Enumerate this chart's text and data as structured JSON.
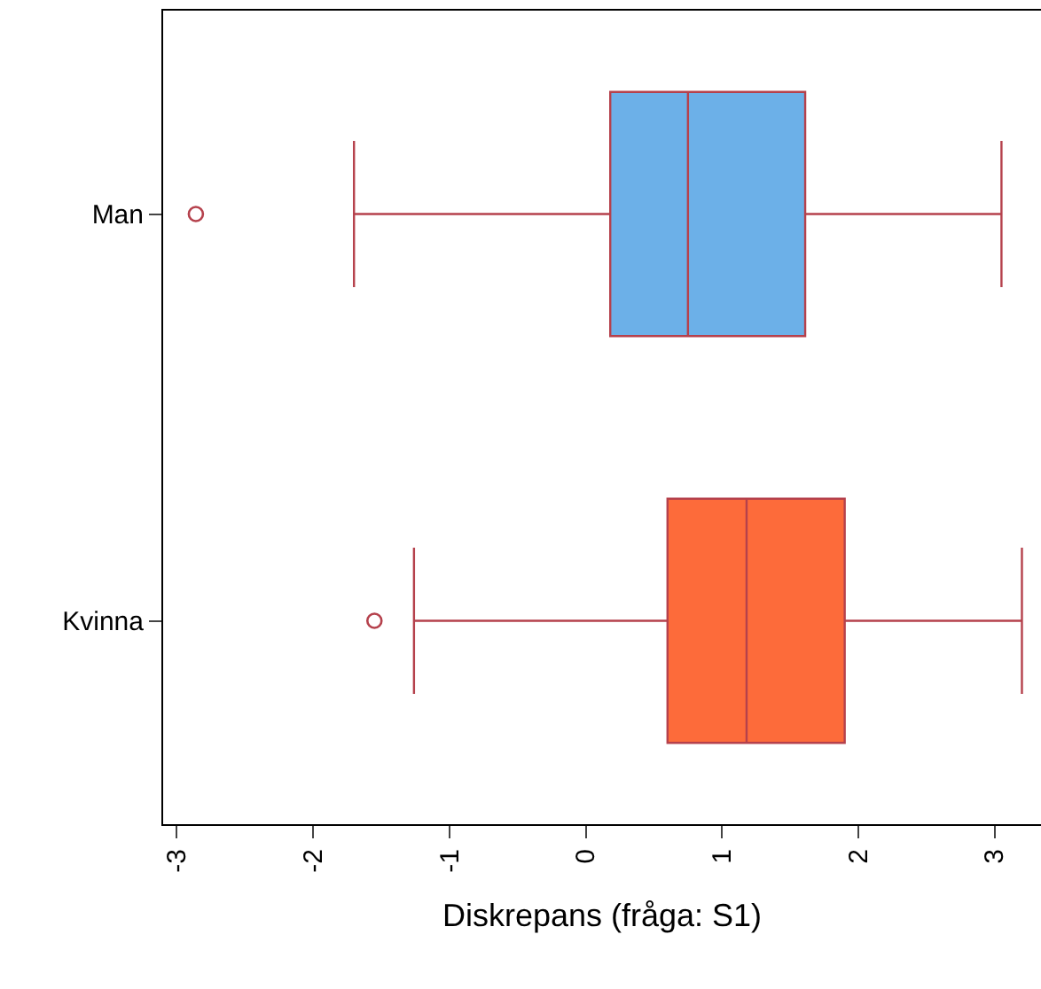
{
  "chart_data": {
    "type": "box",
    "orientation": "horizontal",
    "xlabel": "Diskrepans (fråga: S1)",
    "categories": [
      "Man",
      "Kvinna"
    ],
    "colors": [
      "#6cb0e8",
      "#fd6b3a"
    ],
    "boxes": [
      {
        "low": -1.7,
        "q1": 0.18,
        "median": 0.75,
        "q3": 1.61,
        "high": 3.05,
        "outliers": [
          -2.86
        ]
      },
      {
        "low": -1.26,
        "q1": 0.6,
        "median": 1.18,
        "q3": 1.9,
        "high": 3.2,
        "outliers": [
          -1.55
        ]
      }
    ],
    "xlim": [
      -3.1,
      3.34
    ],
    "xticks": [
      -3,
      -2,
      -1,
      0,
      1,
      2,
      3
    ],
    "marker": "circle"
  }
}
